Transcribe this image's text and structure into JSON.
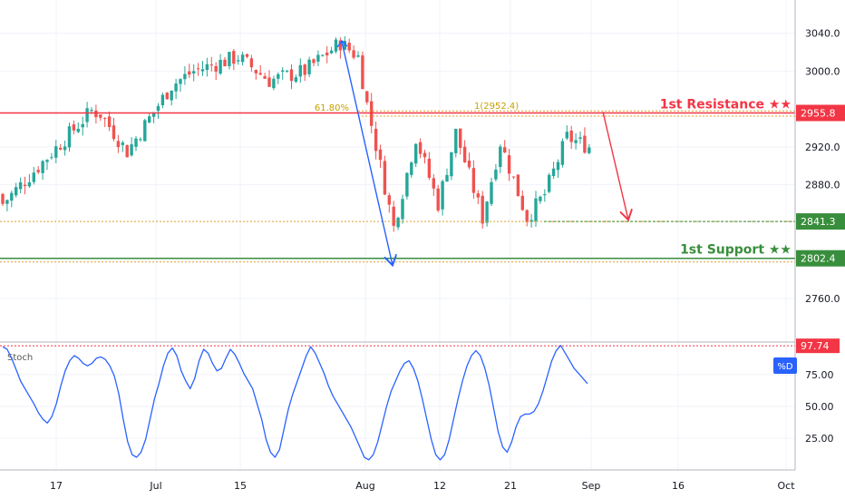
{
  "chart_data": {
    "type": "candlestick",
    "price_axis": {
      "ticks": [
        3040.0,
        3000.0,
        2920.0,
        2880.0,
        2760.0
      ],
      "tick_labels": [
        "3040.0",
        "3000.0",
        "2920.0",
        "2880.0",
        "2760.0"
      ],
      "range": [
        2715,
        3075
      ]
    },
    "time_axis": {
      "tick_labels": [
        "17",
        "Jul",
        "15",
        "Aug",
        "12",
        "21",
        "Sep",
        "16",
        "Oct"
      ]
    },
    "levels": {
      "resistance": {
        "label": "1st Resistance ★★",
        "value": 2955.8,
        "value_label": "2955.8",
        "color": "#f23645"
      },
      "support": {
        "label": "1st Support ★★",
        "value": 2802.4,
        "value_label": "2802.4",
        "color": "#388e3c"
      },
      "pivot": {
        "value": 2841.3,
        "value_label": "2841.3",
        "color": "#388e3c"
      }
    },
    "fibonacci": {
      "level_label": "61.80%",
      "price_label": "1(2952.4)",
      "value": 2952.4,
      "upper_value": 2958.0
    },
    "price_series": {
      "start": 2870,
      "shape": [
        2860,
        2958,
        2955,
        2915,
        2985,
        3000,
        3015,
        2990,
        3000,
        3030,
        3015,
        2965,
        2835,
        2930,
        2860,
        2935,
        2845,
        2925,
        2845,
        2870,
        2930,
        2920
      ],
      "lows": [
        2871,
        2874,
        2870,
        2865,
        2872,
        2885,
        2891,
        2910,
        2903,
        2906,
        2917,
        2937,
        2949,
        2943,
        2921,
        2931,
        2918,
        2922,
        2897,
        2883,
        2883,
        2881
      ]
    },
    "stoch": {
      "label": "Stoch",
      "series_label": "%D",
      "level_label": "97.74",
      "level": 97.74,
      "range": [
        0,
        100
      ],
      "ticks": [
        75,
        50,
        25
      ],
      "tick_labels": [
        "75.00",
        "50.00",
        "25.00"
      ],
      "values": [
        97,
        95,
        88,
        79,
        70,
        64,
        58,
        52,
        45,
        40,
        37,
        42,
        52,
        66,
        78,
        86,
        90,
        88,
        84,
        82,
        84,
        88,
        89,
        87,
        82,
        74,
        60,
        40,
        22,
        12,
        10,
        14,
        24,
        40,
        56,
        68,
        82,
        92,
        96,
        90,
        78,
        70,
        64,
        72,
        86,
        95,
        92,
        84,
        78,
        80,
        88,
        95,
        91,
        84,
        76,
        70,
        64,
        52,
        40,
        24,
        14,
        10,
        16,
        32,
        48,
        60,
        70,
        80,
        90,
        97,
        92,
        84,
        76,
        66,
        58,
        52,
        46,
        40,
        34,
        26,
        18,
        10,
        8,
        12,
        22,
        36,
        50,
        62,
        70,
        78,
        84,
        86,
        80,
        70,
        56,
        40,
        24,
        12,
        8,
        12,
        24,
        40,
        56,
        70,
        82,
        90,
        94,
        90,
        80,
        66,
        48,
        30,
        18,
        14,
        22,
        34,
        42,
        44,
        44,
        46,
        52,
        62,
        74,
        86,
        94,
        98,
        92,
        86,
        80,
        76,
        72,
        68
      ]
    }
  }
}
